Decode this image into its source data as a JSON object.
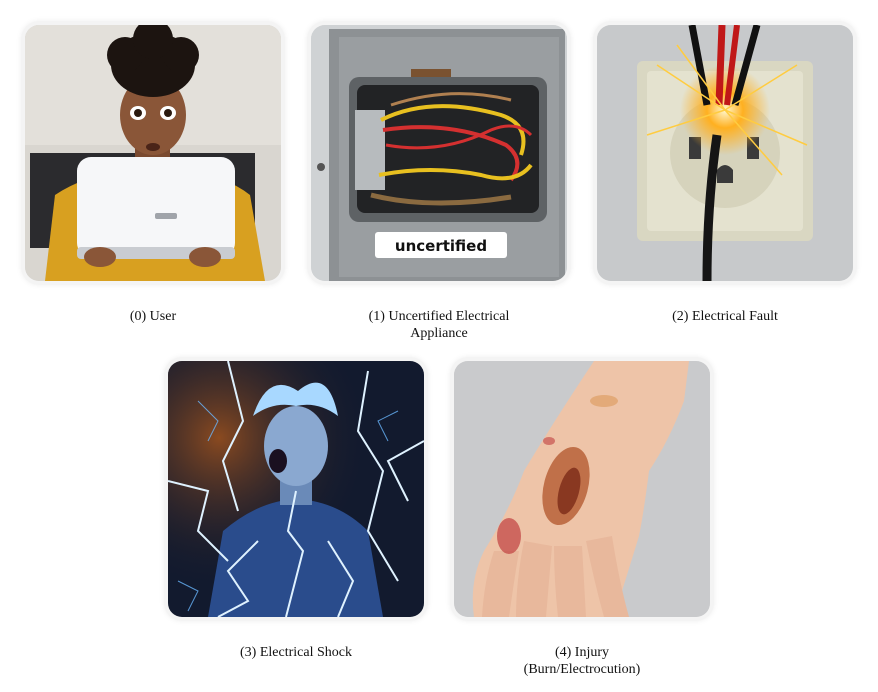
{
  "nodes": [
    {
      "index": "(0)",
      "label": "User",
      "image": "person-holding-router-image"
    },
    {
      "index": "(1)",
      "label_line1": "Uncertified Electrical",
      "label_line2": "Appliance",
      "image": "open-junction-box-image",
      "sticker": "uncertified"
    },
    {
      "index": "(2)",
      "label": "Electrical Fault",
      "image": "sparking-outlet-image"
    },
    {
      "index": "(3)",
      "label": "Electrical Shock",
      "image": "person-electrocuted-image"
    },
    {
      "index": "(4)",
      "label_line1": "Injury",
      "label_line2": "(Burn/Electrocution)",
      "image": "burned-hand-image"
    }
  ],
  "captions": {
    "c0": "(0) User",
    "c1a": "(1) Uncertified Electrical",
    "c1b": "Appliance",
    "c2": "(2) Electrical Fault",
    "c3": "(3) Electrical Shock",
    "c4a": "(4) Injury",
    "c4b": "(Burn/Electrocution)"
  },
  "colors": {
    "panel_glow": "#f4f4f4",
    "caption_text": "#111111"
  }
}
